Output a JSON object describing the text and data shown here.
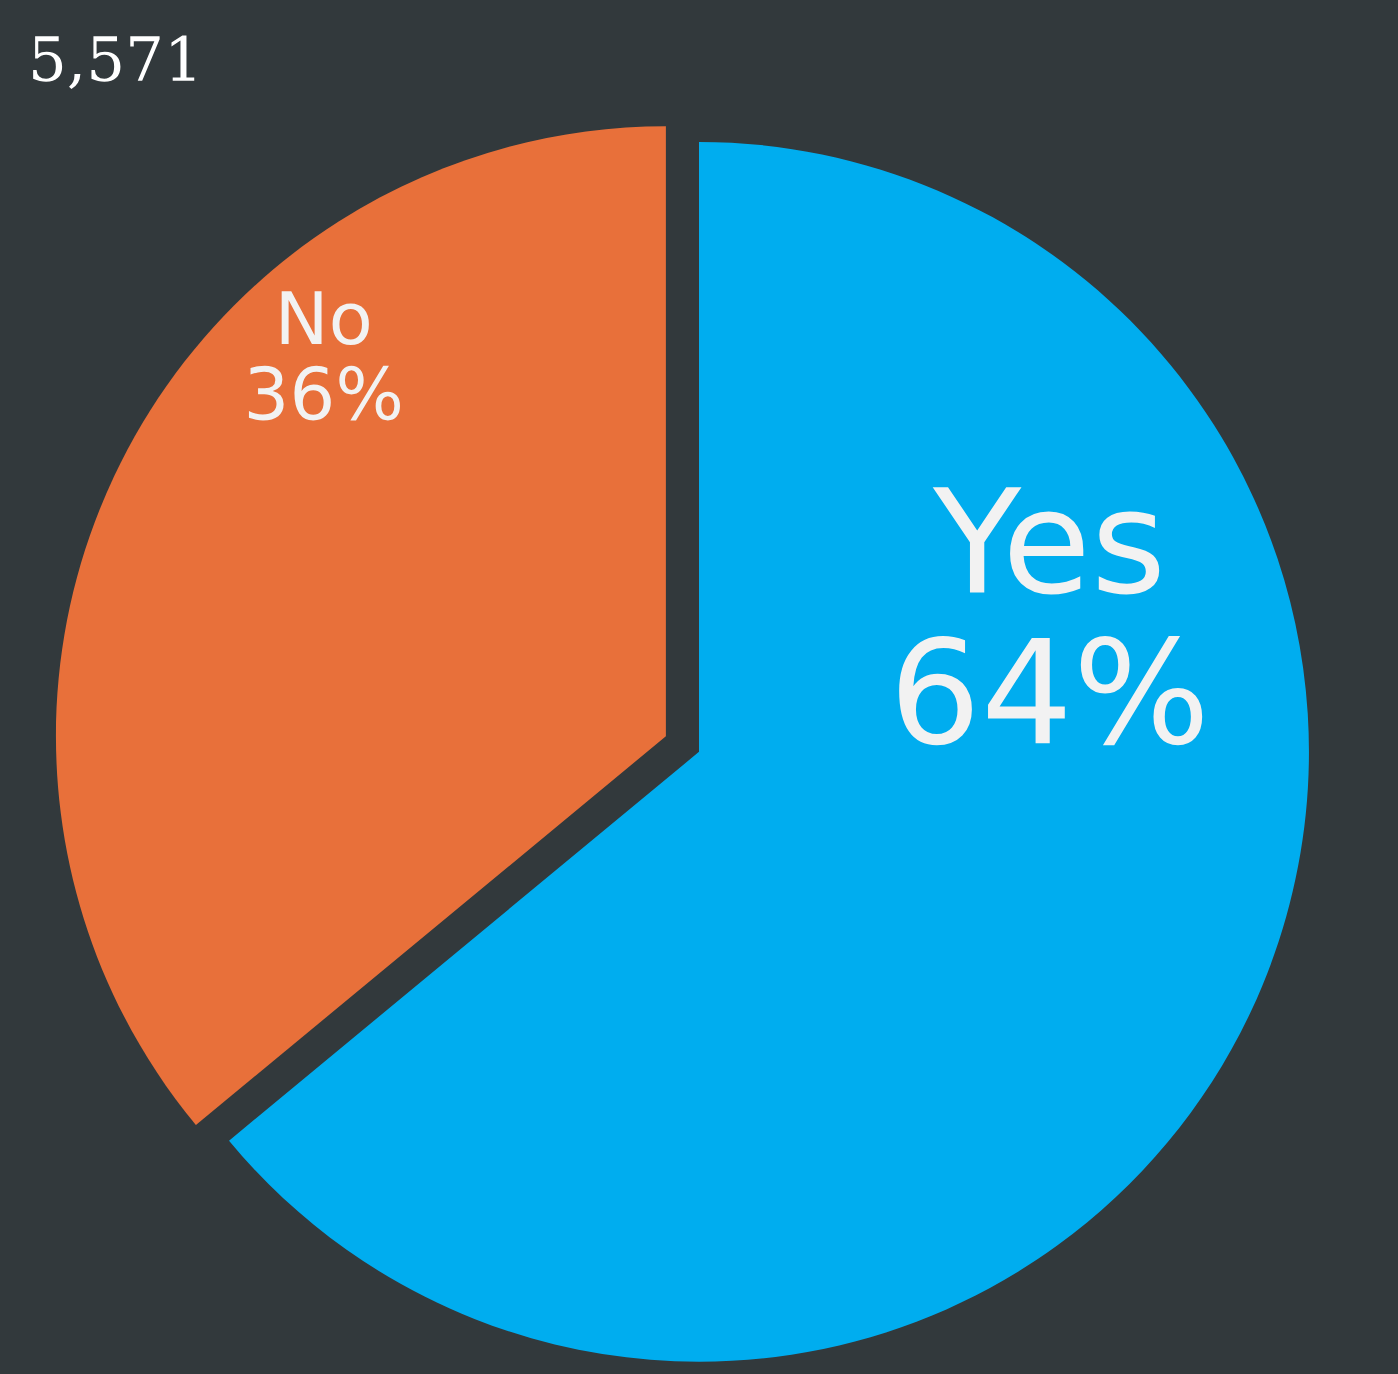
{
  "chart_data": {
    "type": "pie",
    "categories": [
      "Yes",
      "No"
    ],
    "values": [
      64,
      36
    ],
    "value_labels": [
      "64%",
      "36%"
    ],
    "colors": [
      "#00adef",
      "#e8703a"
    ],
    "annotations": [
      "5,571"
    ],
    "legend": false
  }
}
